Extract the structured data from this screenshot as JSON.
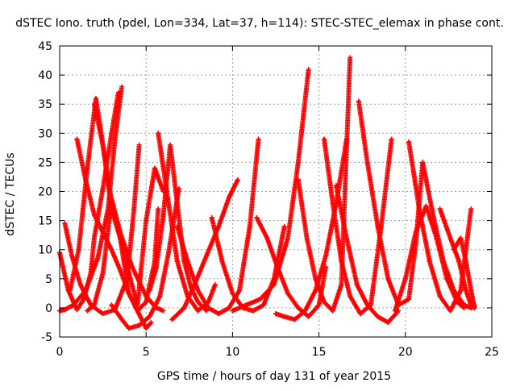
{
  "chart_data": {
    "type": "scatter",
    "title": "dSTEC Iono. truth (pdel, Lon=334, Lat=37, h=114): STEC-STEC_elemax in phase cont.",
    "xlabel": "GPS time / hours of day 131 of year 2015",
    "ylabel": "dSTEC  / TECUs",
    "xlim": [
      0,
      25
    ],
    "ylim": [
      -5,
      45
    ],
    "x_ticks": [
      0,
      5,
      10,
      15,
      20,
      25
    ],
    "y_ticks": [
      -5,
      0,
      5,
      10,
      15,
      20,
      25,
      30,
      35,
      40,
      45
    ],
    "grid": true,
    "marker": "+",
    "color": "#ff0000",
    "series": [
      {
        "x": [
          0.0,
          0.3,
          0.8,
          1.5,
          2.2,
          2.8,
          3.2,
          3.6
        ],
        "values": [
          -0.5,
          -0.3,
          0.5,
          3.0,
          8.5,
          17.0,
          29.0,
          38.0
        ]
      },
      {
        "x": [
          0.0,
          0.5,
          1.0,
          1.4,
          1.8,
          2.0,
          2.5,
          3.0,
          3.4
        ],
        "values": [
          9.5,
          3.0,
          -0.3,
          1.5,
          6.0,
          12.0,
          20.5,
          30.0,
          37.0
        ]
      },
      {
        "x": [
          0.3,
          0.7,
          1.2,
          1.8,
          2.5,
          3.2,
          3.9,
          4.3,
          4.6
        ],
        "values": [
          14.5,
          9.0,
          4.0,
          0.5,
          -1.0,
          -0.3,
          5.0,
          17.0,
          28.0
        ]
      },
      {
        "x": [
          0.6,
          1.1,
          1.6,
          2.1,
          2.5,
          2.9,
          3.5,
          4.2,
          5.0,
          5.6,
          6.0
        ],
        "values": [
          3.0,
          10.0,
          24.0,
          36.0,
          28.0,
          20.0,
          13.0,
          7.0,
          2.0,
          0.0,
          -0.5
        ]
      },
      {
        "x": [
          1.0,
          1.5,
          2.0,
          2.5,
          3.0,
          3.5,
          4.0,
          4.5,
          5.0,
          5.5,
          5.7
        ],
        "values": [
          29.0,
          22.0,
          16.0,
          13.0,
          10.0,
          6.5,
          2.5,
          -0.5,
          1.0,
          8.0,
          17.0
        ]
      },
      {
        "x": [
          1.6,
          2.0,
          2.5,
          3.0,
          3.5,
          4.0,
          4.5,
          5.0,
          5.5,
          6.0
        ],
        "values": [
          -0.5,
          0.5,
          6.0,
          18.0,
          12.0,
          6.0,
          0.5,
          15.0,
          24.0,
          20.0
        ]
      },
      {
        "x": [
          2.0,
          2.5,
          3.0,
          3.5,
          4.0,
          4.5,
          5.0,
          5.3
        ],
        "values": [
          35.0,
          28.0,
          17.0,
          12.0,
          2.5,
          -0.5,
          -3.5,
          -2.5
        ]
      },
      {
        "x": [
          3.0,
          3.6,
          4.0,
          4.6,
          5.2,
          5.8,
          6.3,
          6.9
        ],
        "values": [
          0.5,
          -2.0,
          -3.5,
          -3.0,
          -1.5,
          2.0,
          9.5,
          20.5
        ]
      },
      {
        "x": [
          5.2,
          5.6,
          6.0,
          6.4,
          6.8,
          7.2,
          7.6,
          8.0,
          8.5
        ],
        "values": [
          3.0,
          7.0,
          16.0,
          28.0,
          18.0,
          8.0,
          3.5,
          1.0,
          -0.5
        ]
      },
      {
        "x": [
          5.7,
          6.2,
          6.8,
          7.4,
          8.0,
          8.6,
          9.0
        ],
        "values": [
          30.0,
          20.0,
          8.0,
          2.0,
          -0.5,
          1.0,
          4.0
        ]
      },
      {
        "x": [
          6.5,
          7.2,
          7.8,
          8.5,
          9.2,
          9.8,
          10.3
        ],
        "values": [
          -2.0,
          0.0,
          4.0,
          9.0,
          14.0,
          19.0,
          22.0
        ]
      },
      {
        "x": [
          6.8,
          7.4,
          8.0,
          8.6,
          9.2,
          9.8,
          10.4,
          11.0,
          11.5
        ],
        "values": [
          14.0,
          8.0,
          3.0,
          0.0,
          -1.0,
          0.0,
          3.0,
          14.0,
          29.0
        ]
      },
      {
        "x": [
          8.8,
          9.4,
          10.0,
          10.6,
          11.2,
          11.8,
          12.4,
          13.0
        ],
        "values": [
          15.5,
          8.0,
          2.5,
          0.0,
          -0.5,
          0.5,
          5.0,
          14.0
        ]
      },
      {
        "x": [
          10.0,
          10.8,
          11.6,
          12.4,
          13.2,
          13.8,
          14.4
        ],
        "values": [
          -0.5,
          0.5,
          1.5,
          4.0,
          12.0,
          25.0,
          41.0
        ]
      },
      {
        "x": [
          11.4,
          12.0,
          12.6,
          13.2,
          13.8,
          14.4,
          15.0,
          15.4
        ],
        "values": [
          15.5,
          12.0,
          7.0,
          2.5,
          0.0,
          -1.5,
          0.5,
          7.0
        ]
      },
      {
        "x": [
          12.5,
          13.0,
          13.6,
          14.2,
          14.8,
          15.4,
          16.0,
          16.6
        ],
        "values": [
          -1.0,
          -1.5,
          -2.0,
          -0.5,
          3.0,
          9.0,
          18.0,
          29.0
        ]
      },
      {
        "x": [
          13.8,
          14.3,
          14.8,
          15.3,
          15.8,
          16.3,
          16.8
        ],
        "values": [
          22.0,
          12.0,
          5.0,
          1.0,
          -0.5,
          4.0,
          43.0
        ]
      },
      {
        "x": [
          15.3,
          15.8,
          16.3,
          16.8,
          17.4,
          18.0,
          18.6,
          19.2
        ],
        "values": [
          29.0,
          18.0,
          8.0,
          2.0,
          -1.0,
          0.5,
          14.0,
          29.0
        ]
      },
      {
        "x": [
          16.0,
          16.6,
          17.2,
          17.8,
          18.4,
          19.0,
          19.6
        ],
        "values": [
          21.0,
          12.0,
          4.0,
          0.5,
          -1.5,
          -2.5,
          -0.5
        ]
      },
      {
        "x": [
          17.3,
          17.8,
          18.4,
          19.0,
          19.6,
          20.2,
          20.6,
          21.0
        ],
        "values": [
          35.5,
          25.0,
          14.0,
          5.0,
          0.5,
          1.5,
          11.0,
          25.0
        ]
      },
      {
        "x": [
          19.4,
          20.0,
          20.6,
          21.2,
          21.8,
          22.4,
          23.0,
          23.4
        ],
        "values": [
          -0.5,
          5.0,
          13.0,
          17.5,
          12.0,
          5.0,
          1.0,
          0.0
        ]
      },
      {
        "x": [
          20.2,
          20.8,
          21.4,
          22.0,
          22.6,
          23.2,
          23.8
        ],
        "values": [
          28.5,
          17.0,
          8.0,
          2.0,
          -0.5,
          3.0,
          17.0
        ]
      },
      {
        "x": [
          21.0,
          21.6,
          22.2,
          22.8,
          23.4,
          23.8,
          24.0
        ],
        "values": [
          25.0,
          16.0,
          8.0,
          3.0,
          0.5,
          0.0,
          0.5
        ]
      },
      {
        "x": [
          22.0,
          22.6,
          23.1,
          23.5,
          23.8,
          24.0
        ],
        "values": [
          17.0,
          12.0,
          8.0,
          3.0,
          0.5,
          0.0
        ]
      },
      {
        "x": [
          22.8,
          23.2,
          23.5,
          23.8,
          24.0
        ],
        "values": [
          10.0,
          12.0,
          8.0,
          3.0,
          0.0
        ]
      }
    ]
  }
}
